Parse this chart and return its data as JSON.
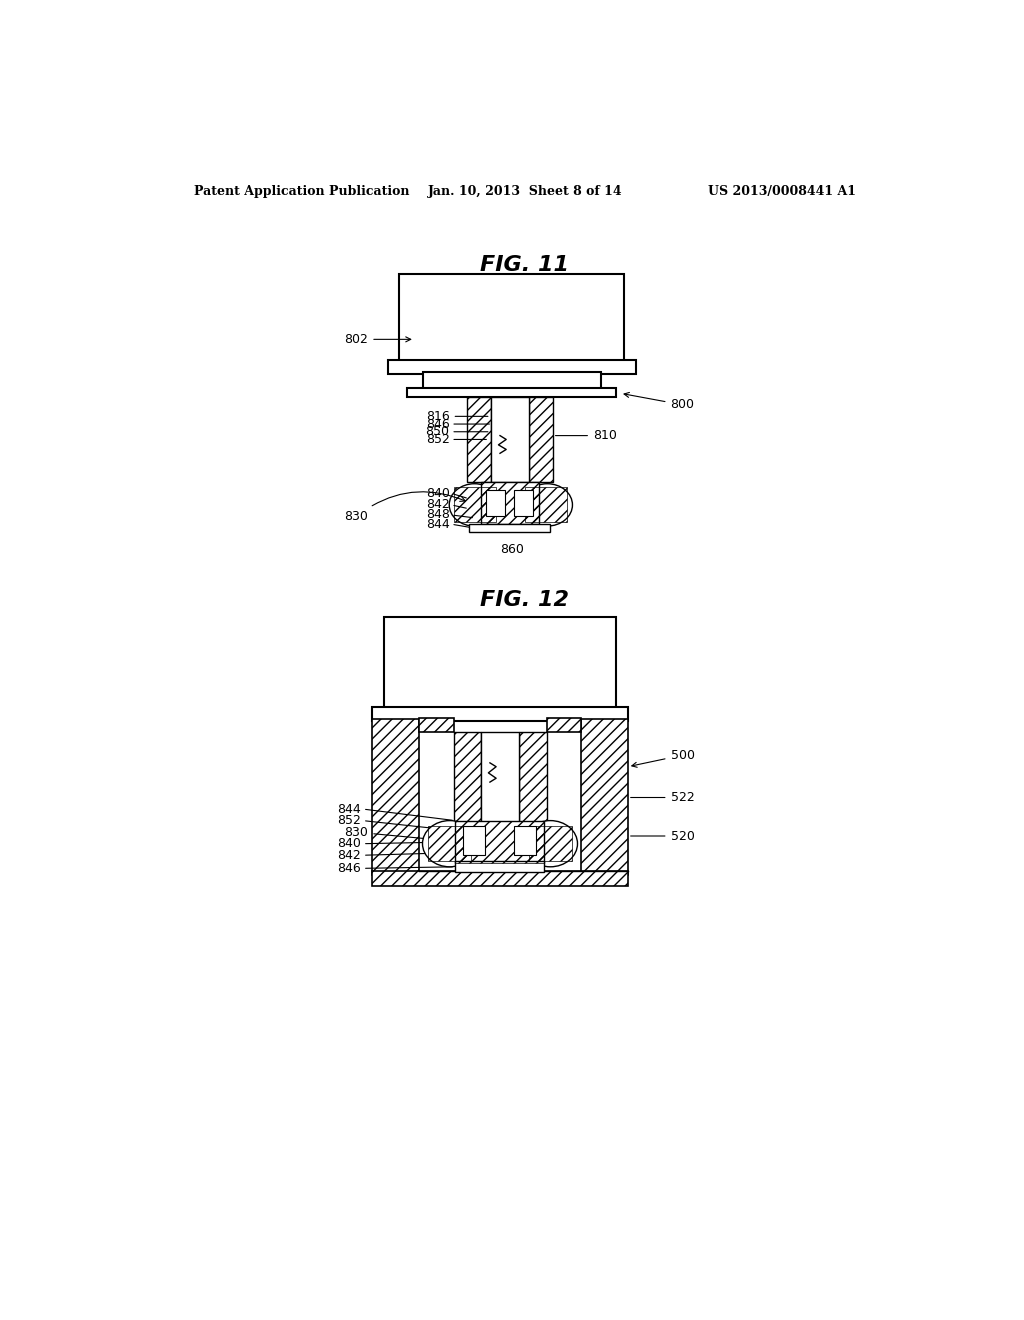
{
  "background_color": "#ffffff",
  "header_left": "Patent Application Publication",
  "header_center": "Jan. 10, 2013  Sheet 8 of 14",
  "header_right": "US 2013/0008441 A1",
  "fig11_title": "FIG. 11",
  "fig12_title": "FIG. 12",
  "text_color": "#000000",
  "line_color": "#000000",
  "hatch_color": "#000000"
}
